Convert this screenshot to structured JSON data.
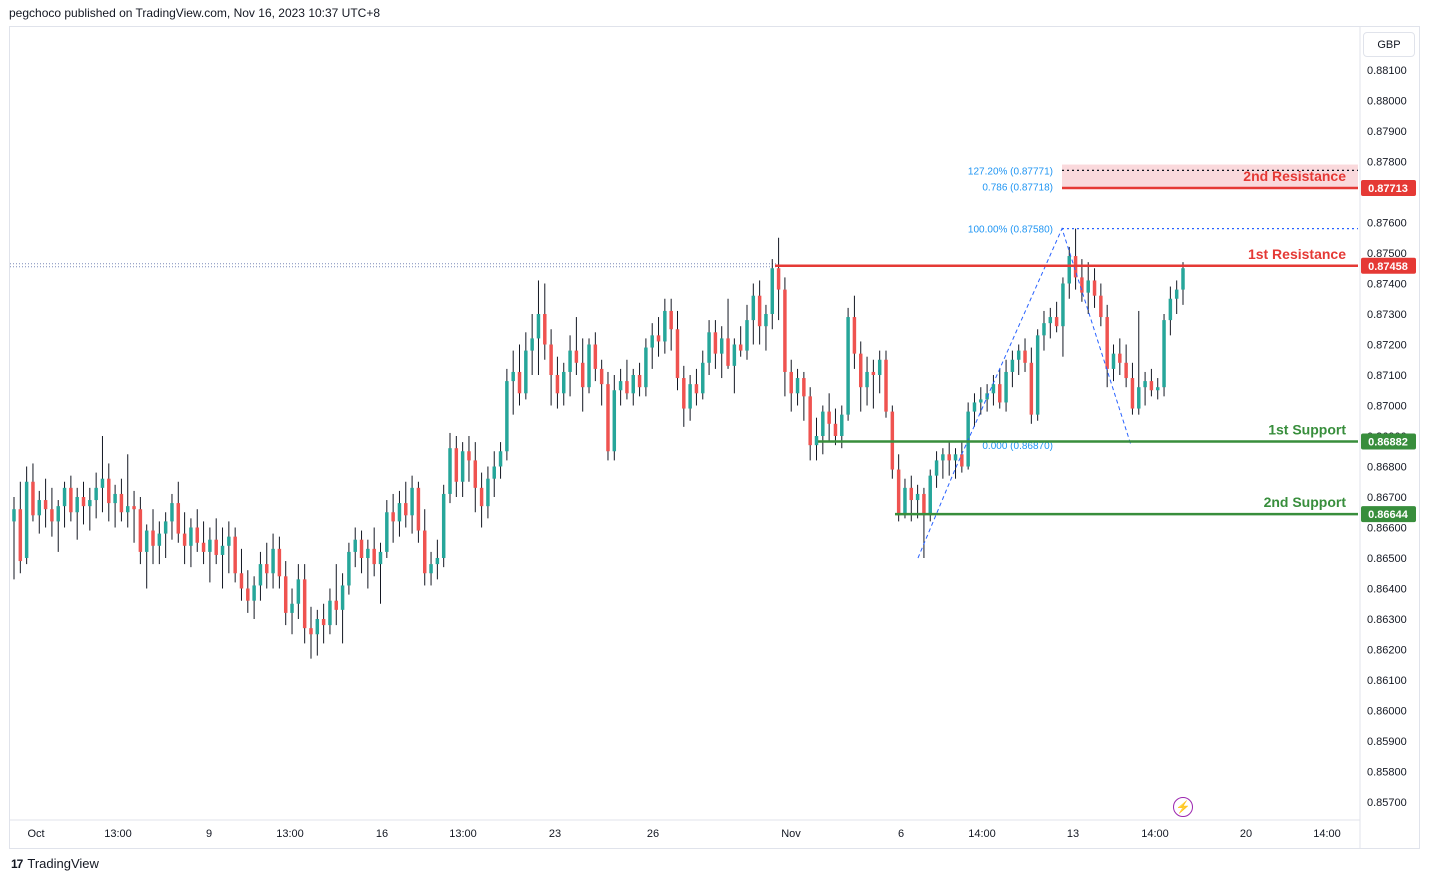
{
  "header": {
    "published_by": "pegchoco published on TradingView.com, Nov 16, 2023 10:37 UTC+8"
  },
  "currency_button": {
    "label": "GBP"
  },
  "footer": {
    "brand": "TradingView",
    "brand_icon": "tradingview-logo-icon"
  },
  "flash_icon": "lightning-icon",
  "colors": {
    "up": "#26a69a",
    "down": "#ef5350",
    "resistance": "#e53935",
    "support": "#388e3c",
    "fib": "#2962ff",
    "fib_label": "#2196f3",
    "zone": "#f8c9cd"
  },
  "chart_data": {
    "type": "candlestick",
    "title": "",
    "xlabel": "",
    "ylabel": "",
    "ylim": [
      0.8566,
      0.8817
    ],
    "y_ticks": [
      "0.88100",
      "0.88000",
      "0.87900",
      "0.87800",
      "0.87700",
      "0.87600",
      "0.87500",
      "0.87400",
      "0.87300",
      "0.87200",
      "0.87100",
      "0.87000",
      "0.86900",
      "0.86800",
      "0.86700",
      "0.86600",
      "0.86500",
      "0.86400",
      "0.86300",
      "0.86200",
      "0.86100",
      "0.86000",
      "0.85900",
      "0.85800",
      "0.85700"
    ],
    "x_ticks": [
      "Oct",
      "13:00",
      "9",
      "13:00",
      "16",
      "13:00",
      "23",
      "26",
      "Nov",
      "6",
      "14:00",
      "13",
      "14:00",
      "20",
      "14:00"
    ],
    "price_levels": [
      {
        "name": "2nd Resistance",
        "price": 0.87713,
        "label": "0.87713"
      },
      {
        "name": "1st Resistance",
        "price": 0.87458,
        "label": "0.87458"
      },
      {
        "name": "1st Support",
        "price": 0.86882,
        "label": "0.86882"
      },
      {
        "name": "2nd Support",
        "price": 0.86644,
        "label": "0.86644"
      }
    ],
    "fib_labels": [
      {
        "text": "127.20% (0.87771)",
        "price": 0.87771
      },
      {
        "text": "0.786 (0.87718)",
        "price": 0.87718
      },
      {
        "text": "100.00% (0.87580)",
        "price": 0.8758
      },
      {
        "text": "0.000 (0.86870)",
        "price": 0.8687
      }
    ],
    "resistance_zone": [
      0.87713,
      0.8779
    ],
    "zigzag": [
      {
        "x": "Nov 6 (low)",
        "y": 0.865
      },
      {
        "x": "Nov 9",
        "y": 0.8679
      },
      {
        "x": "Nov 13 (high)",
        "y": 0.8758
      },
      {
        "x": "Nov 14 (low)",
        "y": 0.8687
      }
    ],
    "candles": [
      [
        0.8662,
        0.867,
        0.8643,
        0.8666
      ],
      [
        0.8666,
        0.8675,
        0.8645,
        0.8649
      ],
      [
        0.865,
        0.868,
        0.8648,
        0.8675
      ],
      [
        0.8675,
        0.8681,
        0.8662,
        0.8664
      ],
      [
        0.8664,
        0.8672,
        0.8658,
        0.8669
      ],
      [
        0.8669,
        0.8676,
        0.866,
        0.8666
      ],
      [
        0.8666,
        0.8673,
        0.8657,
        0.8662
      ],
      [
        0.8662,
        0.8669,
        0.8652,
        0.8667
      ],
      [
        0.8667,
        0.8675,
        0.866,
        0.8673
      ],
      [
        0.8673,
        0.8677,
        0.8662,
        0.8665
      ],
      [
        0.8665,
        0.8673,
        0.8656,
        0.867
      ],
      [
        0.867,
        0.8675,
        0.8661,
        0.8667
      ],
      [
        0.8667,
        0.8673,
        0.8659,
        0.8669
      ],
      [
        0.8669,
        0.8678,
        0.8663,
        0.8673
      ],
      [
        0.8673,
        0.869,
        0.8665,
        0.8676
      ],
      [
        0.8676,
        0.8681,
        0.8662,
        0.8668
      ],
      [
        0.8668,
        0.8674,
        0.866,
        0.8671
      ],
      [
        0.8671,
        0.8676,
        0.8662,
        0.8665
      ],
      [
        0.8665,
        0.8684,
        0.866,
        0.8667
      ],
      [
        0.8667,
        0.8672,
        0.8655,
        0.8666
      ],
      [
        0.8666,
        0.867,
        0.8648,
        0.8652
      ],
      [
        0.8652,
        0.8661,
        0.864,
        0.8659
      ],
      [
        0.8659,
        0.8666,
        0.8648,
        0.8654
      ],
      [
        0.8654,
        0.8662,
        0.8648,
        0.8658
      ],
      [
        0.8658,
        0.8665,
        0.865,
        0.8662
      ],
      [
        0.8662,
        0.8671,
        0.8656,
        0.8668
      ],
      [
        0.8668,
        0.8675,
        0.8655,
        0.8658
      ],
      [
        0.8658,
        0.8665,
        0.8648,
        0.8654
      ],
      [
        0.8654,
        0.8663,
        0.8647,
        0.866
      ],
      [
        0.866,
        0.8666,
        0.8652,
        0.8655
      ],
      [
        0.8655,
        0.8662,
        0.8648,
        0.8652
      ],
      [
        0.8652,
        0.866,
        0.8642,
        0.8656
      ],
      [
        0.8656,
        0.8663,
        0.8648,
        0.8651
      ],
      [
        0.8651,
        0.866,
        0.864,
        0.8654
      ],
      [
        0.8654,
        0.8662,
        0.8645,
        0.8657
      ],
      [
        0.8657,
        0.866,
        0.8642,
        0.8645
      ],
      [
        0.8645,
        0.8653,
        0.8636,
        0.864
      ],
      [
        0.864,
        0.8646,
        0.8632,
        0.8636
      ],
      [
        0.8636,
        0.8644,
        0.863,
        0.8641
      ],
      [
        0.8641,
        0.8652,
        0.8636,
        0.8648
      ],
      [
        0.8648,
        0.8655,
        0.864,
        0.8645
      ],
      [
        0.8645,
        0.8658,
        0.864,
        0.8653
      ],
      [
        0.8653,
        0.8657,
        0.864,
        0.8644
      ],
      [
        0.8644,
        0.8649,
        0.8628,
        0.8632
      ],
      [
        0.8632,
        0.864,
        0.8625,
        0.8635
      ],
      [
        0.8635,
        0.8648,
        0.863,
        0.8643
      ],
      [
        0.8643,
        0.8648,
        0.8622,
        0.8627
      ],
      [
        0.8627,
        0.8634,
        0.8617,
        0.8625
      ],
      [
        0.8625,
        0.8633,
        0.8618,
        0.863
      ],
      [
        0.863,
        0.8635,
        0.8622,
        0.8628
      ],
      [
        0.8628,
        0.864,
        0.8625,
        0.8636
      ],
      [
        0.8636,
        0.8648,
        0.8628,
        0.8633
      ],
      [
        0.8633,
        0.8645,
        0.8622,
        0.8641
      ],
      [
        0.8641,
        0.8655,
        0.8638,
        0.8652
      ],
      [
        0.8652,
        0.866,
        0.8647,
        0.8656
      ],
      [
        0.8656,
        0.8659,
        0.8645,
        0.865
      ],
      [
        0.865,
        0.8656,
        0.864,
        0.8653
      ],
      [
        0.8653,
        0.866,
        0.8644,
        0.8648
      ],
      [
        0.8648,
        0.8655,
        0.8635,
        0.8652
      ],
      [
        0.8652,
        0.8669,
        0.865,
        0.8665
      ],
      [
        0.8665,
        0.8671,
        0.8655,
        0.8662
      ],
      [
        0.8662,
        0.8672,
        0.8657,
        0.8668
      ],
      [
        0.8668,
        0.8675,
        0.866,
        0.8664
      ],
      [
        0.8664,
        0.8677,
        0.8658,
        0.8673
      ],
      [
        0.8673,
        0.8675,
        0.8655,
        0.8659
      ],
      [
        0.8659,
        0.8666,
        0.8641,
        0.8645
      ],
      [
        0.8645,
        0.8652,
        0.8641,
        0.8648
      ],
      [
        0.8648,
        0.8656,
        0.8643,
        0.865
      ],
      [
        0.865,
        0.8674,
        0.8647,
        0.8671
      ],
      [
        0.8671,
        0.8691,
        0.8668,
        0.8686
      ],
      [
        0.8686,
        0.869,
        0.867,
        0.8675
      ],
      [
        0.8675,
        0.8688,
        0.867,
        0.8685
      ],
      [
        0.8685,
        0.869,
        0.8675,
        0.8682
      ],
      [
        0.8682,
        0.8688,
        0.8665,
        0.8673
      ],
      [
        0.8673,
        0.8678,
        0.866,
        0.8667
      ],
      [
        0.8667,
        0.868,
        0.8663,
        0.8676
      ],
      [
        0.8676,
        0.8685,
        0.867,
        0.868
      ],
      [
        0.868,
        0.8688,
        0.8676,
        0.8685
      ],
      [
        0.8685,
        0.8712,
        0.8682,
        0.8708
      ],
      [
        0.8708,
        0.8718,
        0.8697,
        0.8711
      ],
      [
        0.8711,
        0.872,
        0.87,
        0.8704
      ],
      [
        0.8704,
        0.8724,
        0.8702,
        0.8718
      ],
      [
        0.8718,
        0.873,
        0.871,
        0.8722
      ],
      [
        0.8722,
        0.8741,
        0.871,
        0.873
      ],
      [
        0.873,
        0.874,
        0.8715,
        0.872
      ],
      [
        0.872,
        0.8725,
        0.87,
        0.871
      ],
      [
        0.871,
        0.8716,
        0.8699,
        0.8704
      ],
      [
        0.8704,
        0.8714,
        0.87,
        0.8711
      ],
      [
        0.8711,
        0.8723,
        0.8703,
        0.8718
      ],
      [
        0.8718,
        0.8729,
        0.871,
        0.8714
      ],
      [
        0.8714,
        0.8722,
        0.8698,
        0.8706
      ],
      [
        0.8706,
        0.8722,
        0.8704,
        0.872
      ],
      [
        0.872,
        0.8724,
        0.8708,
        0.8712
      ],
      [
        0.8712,
        0.8715,
        0.87,
        0.8707
      ],
      [
        0.8707,
        0.8711,
        0.8682,
        0.8685
      ],
      [
        0.8685,
        0.871,
        0.8682,
        0.8705
      ],
      [
        0.8705,
        0.8712,
        0.87,
        0.8708
      ],
      [
        0.8708,
        0.8715,
        0.8702,
        0.8704
      ],
      [
        0.8704,
        0.8712,
        0.87,
        0.871
      ],
      [
        0.871,
        0.8714,
        0.8703,
        0.8706
      ],
      [
        0.8706,
        0.8722,
        0.8703,
        0.8719
      ],
      [
        0.8719,
        0.8727,
        0.8712,
        0.8723
      ],
      [
        0.8723,
        0.8729,
        0.8716,
        0.8721
      ],
      [
        0.8721,
        0.8735,
        0.8717,
        0.8731
      ],
      [
        0.8731,
        0.8735,
        0.8718,
        0.8725
      ],
      [
        0.8725,
        0.8731,
        0.8705,
        0.8709
      ],
      [
        0.8709,
        0.8713,
        0.8693,
        0.8699
      ],
      [
        0.8699,
        0.871,
        0.8695,
        0.8707
      ],
      [
        0.8707,
        0.8712,
        0.87,
        0.8704
      ],
      [
        0.8704,
        0.8718,
        0.8702,
        0.8714
      ],
      [
        0.8714,
        0.8728,
        0.871,
        0.8724
      ],
      [
        0.8724,
        0.8728,
        0.8712,
        0.8717
      ],
      [
        0.8717,
        0.8726,
        0.8709,
        0.8722
      ],
      [
        0.8722,
        0.8735,
        0.8712,
        0.8713
      ],
      [
        0.8713,
        0.8722,
        0.8704,
        0.872
      ],
      [
        0.872,
        0.8726,
        0.8716,
        0.8718
      ],
      [
        0.8718,
        0.8733,
        0.8715,
        0.8728
      ],
      [
        0.8728,
        0.874,
        0.872,
        0.8736
      ],
      [
        0.8736,
        0.8741,
        0.872,
        0.8726
      ],
      [
        0.8726,
        0.8733,
        0.8718,
        0.873
      ],
      [
        0.873,
        0.8748,
        0.8725,
        0.8745
      ],
      [
        0.8745,
        0.8755,
        0.8728,
        0.8738
      ],
      [
        0.8738,
        0.8742,
        0.8703,
        0.8711
      ],
      [
        0.8711,
        0.8715,
        0.8698,
        0.8704
      ],
      [
        0.8704,
        0.8712,
        0.87,
        0.8709
      ],
      [
        0.8709,
        0.8711,
        0.8695,
        0.8703
      ],
      [
        0.8703,
        0.8706,
        0.8682,
        0.8687
      ],
      [
        0.8687,
        0.8696,
        0.8682,
        0.869
      ],
      [
        0.869,
        0.87,
        0.8684,
        0.8698
      ],
      [
        0.8698,
        0.8704,
        0.8688,
        0.8694
      ],
      [
        0.8694,
        0.8699,
        0.8687,
        0.869
      ],
      [
        0.869,
        0.87,
        0.8686,
        0.8697
      ],
      [
        0.8697,
        0.8732,
        0.8695,
        0.8729
      ],
      [
        0.8729,
        0.8736,
        0.8712,
        0.8717
      ],
      [
        0.8717,
        0.8721,
        0.8698,
        0.8706
      ],
      [
        0.8706,
        0.8716,
        0.87,
        0.8711
      ],
      [
        0.8711,
        0.8715,
        0.8699,
        0.871
      ],
      [
        0.871,
        0.8718,
        0.8704,
        0.8715
      ],
      [
        0.8715,
        0.8718,
        0.8696,
        0.8698
      ],
      [
        0.8698,
        0.87,
        0.8676,
        0.8679
      ],
      [
        0.8679,
        0.8684,
        0.8662,
        0.8664
      ],
      [
        0.8664,
        0.8676,
        0.8663,
        0.8673
      ],
      [
        0.8673,
        0.8677,
        0.8662,
        0.8669
      ],
      [
        0.8669,
        0.8674,
        0.8663,
        0.8671
      ],
      [
        0.8671,
        0.8673,
        0.865,
        0.8664
      ],
      [
        0.8664,
        0.8679,
        0.8662,
        0.8677
      ],
      [
        0.8677,
        0.8685,
        0.8673,
        0.8682
      ],
      [
        0.8682,
        0.8686,
        0.8676,
        0.8684
      ],
      [
        0.8684,
        0.8688,
        0.8677,
        0.8682
      ],
      [
        0.8682,
        0.8686,
        0.8676,
        0.8684
      ],
      [
        0.8684,
        0.8688,
        0.8678,
        0.868
      ],
      [
        0.868,
        0.8701,
        0.8679,
        0.8698
      ],
      [
        0.8698,
        0.8704,
        0.8693,
        0.8701
      ],
      [
        0.8701,
        0.8706,
        0.8697,
        0.8702
      ],
      [
        0.8702,
        0.8707,
        0.8698,
        0.8704
      ],
      [
        0.8704,
        0.871,
        0.87,
        0.8707
      ],
      [
        0.8707,
        0.8712,
        0.8699,
        0.8701
      ],
      [
        0.8701,
        0.8715,
        0.8698,
        0.8711
      ],
      [
        0.8711,
        0.8718,
        0.8706,
        0.8715
      ],
      [
        0.8715,
        0.872,
        0.871,
        0.8718
      ],
      [
        0.8718,
        0.8722,
        0.8711,
        0.8714
      ],
      [
        0.8714,
        0.8719,
        0.8694,
        0.8697
      ],
      [
        0.8697,
        0.8725,
        0.8695,
        0.8723
      ],
      [
        0.8723,
        0.8731,
        0.8718,
        0.8727
      ],
      [
        0.8727,
        0.8732,
        0.8722,
        0.8729
      ],
      [
        0.8729,
        0.8734,
        0.8724,
        0.8726
      ],
      [
        0.8726,
        0.8742,
        0.8716,
        0.874
      ],
      [
        0.874,
        0.8752,
        0.8735,
        0.8749
      ],
      [
        0.8749,
        0.8758,
        0.8738,
        0.8742
      ],
      [
        0.8742,
        0.8748,
        0.8734,
        0.8737
      ],
      [
        0.8737,
        0.8747,
        0.873,
        0.8741
      ],
      [
        0.8741,
        0.8745,
        0.8732,
        0.8736
      ],
      [
        0.8736,
        0.874,
        0.8726,
        0.8729
      ],
      [
        0.8729,
        0.8733,
        0.8706,
        0.8712
      ],
      [
        0.8712,
        0.872,
        0.8708,
        0.8717
      ],
      [
        0.8717,
        0.8722,
        0.871,
        0.8714
      ],
      [
        0.8714,
        0.872,
        0.8706,
        0.8709
      ],
      [
        0.8709,
        0.8714,
        0.8697,
        0.8699
      ],
      [
        0.8699,
        0.8731,
        0.8697,
        0.8706
      ],
      [
        0.8706,
        0.8711,
        0.87,
        0.8708
      ],
      [
        0.8708,
        0.8712,
        0.8703,
        0.8705
      ],
      [
        0.8705,
        0.8709,
        0.8702,
        0.8706
      ],
      [
        0.8706,
        0.873,
        0.8703,
        0.8728
      ],
      [
        0.8728,
        0.8739,
        0.8723,
        0.8735
      ],
      [
        0.8735,
        0.8741,
        0.873,
        0.8738
      ],
      [
        0.8738,
        0.8747,
        0.8733,
        0.8745
      ]
    ]
  }
}
